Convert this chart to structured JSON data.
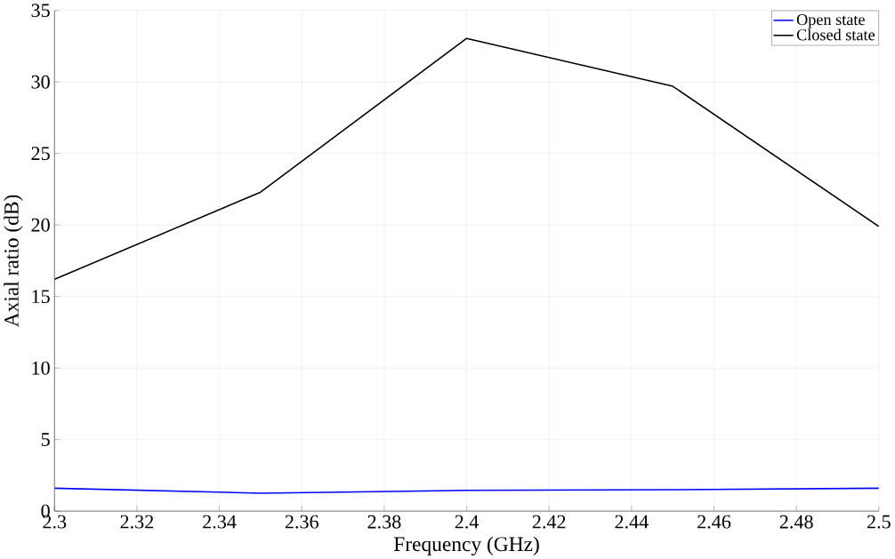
{
  "chart_data": {
    "type": "line",
    "xlabel": "Frequency (GHz)",
    "ylabel": "Axial ratio (dB)",
    "x": [
      2.3,
      2.35,
      2.4,
      2.45,
      2.5
    ],
    "series": [
      {
        "name": "Open state",
        "color": "#0000ff",
        "values": [
          1.6,
          1.25,
          1.45,
          1.5,
          1.6
        ]
      },
      {
        "name": "Closed state",
        "color": "#000000",
        "values": [
          16.2,
          22.3,
          33.05,
          29.7,
          19.9
        ]
      }
    ],
    "xlim": [
      2.3,
      2.5
    ],
    "ylim": [
      0,
      35
    ],
    "xticks": [
      2.3,
      2.32,
      2.34,
      2.36,
      2.38,
      2.4,
      2.42,
      2.44,
      2.46,
      2.48,
      2.5
    ],
    "yticks": [
      0,
      5,
      10,
      15,
      20,
      25,
      30,
      35
    ],
    "grid": true,
    "legend": "top right",
    "marker": "none",
    "line_style": "solid"
  }
}
